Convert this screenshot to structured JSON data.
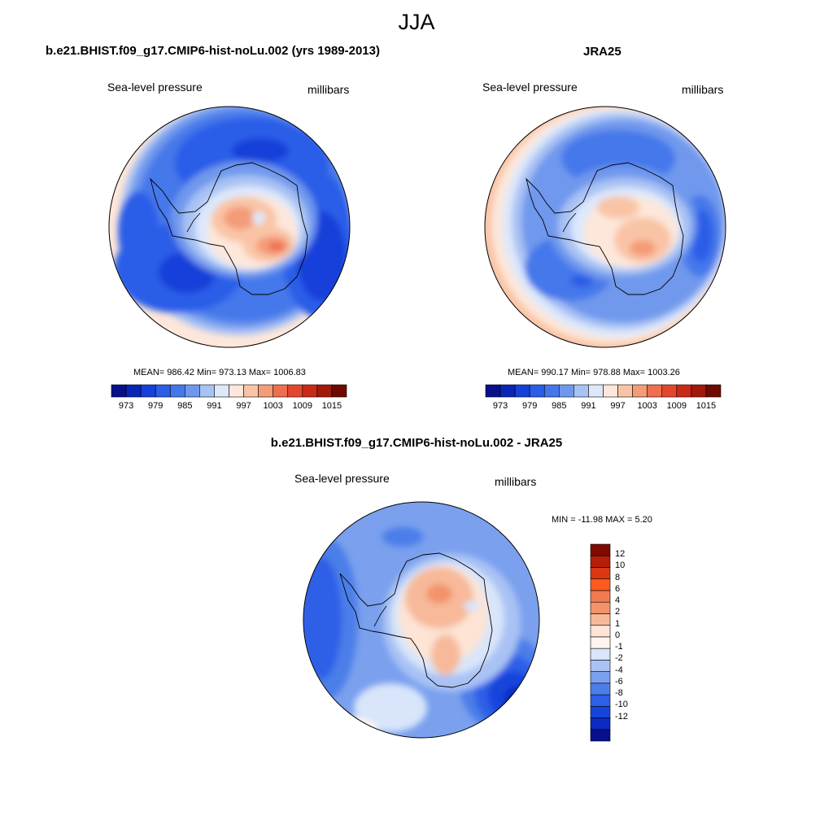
{
  "title": "JJA",
  "colors": {
    "abs_palette": [
      "#08108a",
      "#0b25b8",
      "#1541d9",
      "#2a5de8",
      "#4478ea",
      "#6f98ed",
      "#a9c2f4",
      "#dde8fb",
      "#fde7da",
      "#f9c4a6",
      "#f49b78",
      "#ee6e4f",
      "#e4472d",
      "#c92a17",
      "#a2190b",
      "#6e0a02"
    ],
    "diff_palette": [
      "#07108a",
      "#0b2ac0",
      "#1744dc",
      "#2d5fe7",
      "#4c7ee9",
      "#7aa0ee",
      "#a9c2f4",
      "#d8e5fa",
      "#fff4ee",
      "#fde4d4",
      "#f7b99a",
      "#f3936b",
      "#f07a52",
      "#ff5a1f",
      "#db3712",
      "#b51f08",
      "#7e0b02"
    ]
  },
  "panels": [
    {
      "title": "b.e21.BHIST.f09_g17.CMIP6-hist-noLu.002 (yrs 1989-2013)",
      "left_label": "Sea-level pressure",
      "right_label": "millibars",
      "stats": "MEAN= 986.42  Min= 973.13  Max= 1006.83",
      "colorbar_labels": [
        "973",
        "979",
        "985",
        "991",
        "997",
        "1003",
        "1009",
        "1015"
      ]
    },
    {
      "title": "JRA25",
      "left_label": "Sea-level pressure",
      "right_label": "millibars",
      "stats": "MEAN= 990.17  Min= 978.88  Max= 1003.26",
      "colorbar_labels": [
        "973",
        "979",
        "985",
        "991",
        "997",
        "1003",
        "1009",
        "1015"
      ]
    },
    {
      "title": "b.e21.BHIST.f09_g17.CMIP6-hist-noLu.002 - JRA25",
      "left_label": "Sea-level pressure",
      "right_label": "millibars",
      "stats": "MIN = -11.98 MAX =   5.20",
      "colorbar_labels": [
        "12",
        "10",
        "8",
        "6",
        "4",
        "2",
        "1",
        "0",
        "-1",
        "-2",
        "-4",
        "-6",
        "-8",
        "-10",
        "-12"
      ]
    }
  ]
}
